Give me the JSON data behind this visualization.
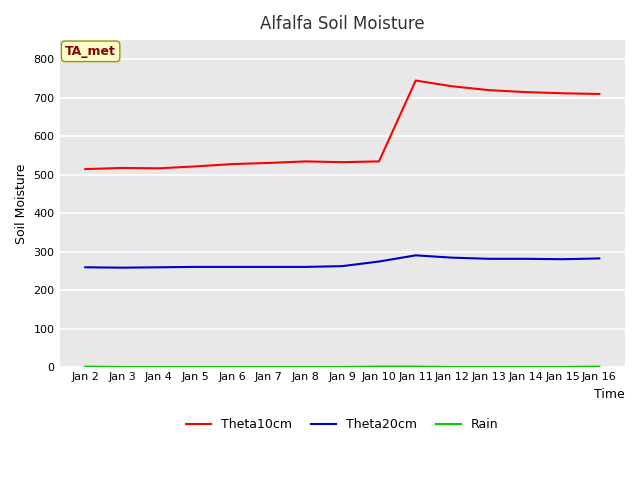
{
  "title": "Alfalfa Soil Moisture",
  "xlabel": "Time",
  "ylabel": "Soil Moisture",
  "annotation_text": "TA_met",
  "annotation_color": "#8B0000",
  "annotation_bg": "#FFFFCC",
  "annotation_edge": "#999900",
  "plot_bg_color": "#E8E8E8",
  "fig_bg_color": "#FFFFFF",
  "x_labels": [
    "Jan 2",
    "Jan 3",
    "Jan 4",
    "Jan 5",
    "Jan 6",
    "Jan 7",
    "Jan 8",
    "Jan 9",
    "Jan 10",
    "Jan 11",
    "Jan 12",
    "Jan 13",
    "Jan 14",
    "Jan 15",
    "Jan 16"
  ],
  "x_values": [
    0,
    1,
    2,
    3,
    4,
    5,
    6,
    7,
    8,
    9,
    10,
    11,
    12,
    13,
    14
  ],
  "theta10cm": [
    515,
    518,
    517,
    522,
    528,
    531,
    535,
    533,
    535,
    745,
    730,
    720,
    715,
    712,
    710
  ],
  "theta20cm": [
    260,
    259,
    260,
    261,
    261,
    261,
    261,
    263,
    275,
    291,
    285,
    282,
    282,
    281,
    283
  ],
  "rain": [
    2,
    1,
    1,
    1,
    1,
    1,
    1,
    1,
    2,
    2,
    1,
    1,
    1,
    1,
    2
  ],
  "theta10_color": "#FF0000",
  "theta20_color": "#0000CC",
  "rain_color": "#00CC00",
  "ylim_min": 0,
  "ylim_max": 850,
  "yticks": [
    0,
    100,
    200,
    300,
    400,
    500,
    600,
    700,
    800
  ],
  "legend_labels": [
    "Theta10cm",
    "Theta20cm",
    "Rain"
  ],
  "title_fontsize": 12,
  "tick_label_fontsize": 8,
  "axis_label_fontsize": 9,
  "line_width": 1.5,
  "grid_color": "#FFFFFF",
  "grid_linewidth": 1.2
}
